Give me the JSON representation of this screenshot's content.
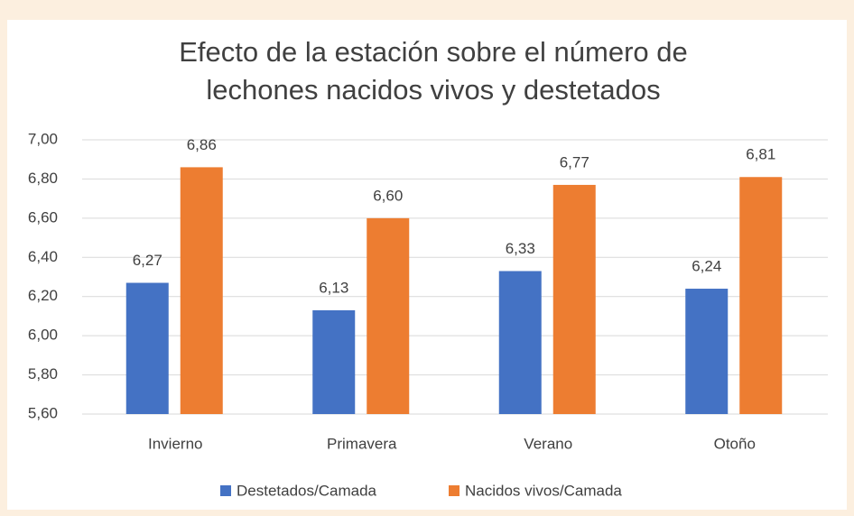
{
  "chart_data": {
    "type": "bar",
    "title": [
      "Efecto de la estación sobre el número de",
      "lechones nacidos vivos y destetados"
    ],
    "categories": [
      "Invierno",
      "Primavera",
      "Verano",
      "Otoño"
    ],
    "series": [
      {
        "name": "Destetados/Camada",
        "color": "#4472c4",
        "values": [
          6.27,
          6.13,
          6.33,
          6.24
        ],
        "value_labels": [
          "6,27",
          "6,13",
          "6,33",
          "6,24"
        ]
      },
      {
        "name": "Nacidos vivos/Camada",
        "color": "#ed7d31",
        "values": [
          6.86,
          6.6,
          6.77,
          6.81
        ],
        "value_labels": [
          "6,86",
          "6,60",
          "6,77",
          "6,81"
        ]
      }
    ],
    "ylim": [
      5.6,
      7.0
    ],
    "yticks": [
      {
        "value": 5.6,
        "label": "5,60"
      },
      {
        "value": 5.8,
        "label": "5,80"
      },
      {
        "value": 6.0,
        "label": "6,00"
      },
      {
        "value": 6.2,
        "label": "6,20"
      },
      {
        "value": 6.4,
        "label": "6,40"
      },
      {
        "value": 6.6,
        "label": "6,60"
      },
      {
        "value": 6.8,
        "label": "6,80"
      },
      {
        "value": 7.0,
        "label": "7,00"
      }
    ],
    "grid": true,
    "legend": "bottom"
  }
}
